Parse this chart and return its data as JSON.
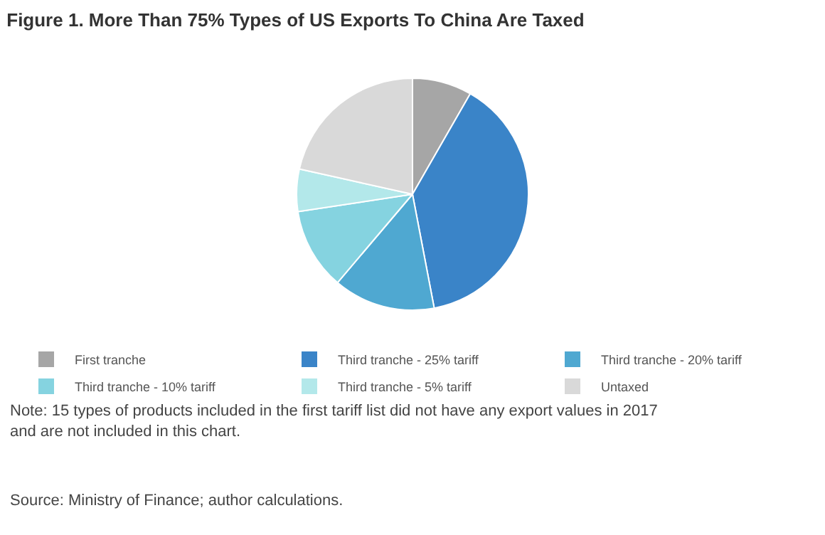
{
  "chart_data": {
    "type": "pie",
    "title": "Figure 1. More Than 75% Types of US Exports To China Are Taxed",
    "categories": [
      "First tranche",
      "Third tranche - 25% tariff",
      "Third tranche - 20% tariff",
      "Third tranche - 10% tariff",
      "Third tranche - 5% tariff",
      "Untaxed"
    ],
    "values": [
      8.3,
      38.7,
      14.2,
      11.4,
      5.9,
      21.5
    ],
    "colors": [
      "#a6a6a6",
      "#3a84c8",
      "#4fa8d1",
      "#85d3e0",
      "#b3e8ea",
      "#d9d9d9"
    ],
    "legend": "bottom",
    "annotations": [
      "Note: 15 types of products included in the first tariff list did not have any export values in 2017\nand are not included in this chart.",
      "Source: Ministry of Finance; author calculations."
    ]
  }
}
